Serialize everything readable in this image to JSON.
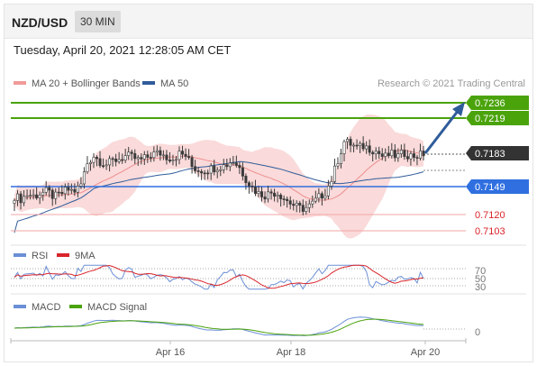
{
  "header": {
    "pair": "NZD/USD",
    "timeframe": "30 MIN",
    "datetime": "Tuesday, April 20, 2021 12:28:05 AM CET"
  },
  "legend": {
    "ma20_bb": "MA 20 + Bollinger Bands",
    "ma50": "MA 50",
    "credit": "Research © 2021 Trading Central",
    "rsi": "RSI",
    "rsi_ma": "9MA",
    "macd": "MACD",
    "macd_signal": "MACD Signal"
  },
  "colors": {
    "green_level": "#4aa30b",
    "blue_level": "#2f6fe0",
    "red_level": "#e36a6a",
    "candle": "#3a3a3a",
    "bollinger": "#f9d4d4",
    "ma20": "#ef8f8f",
    "ma50": "#2f5c9a",
    "rsi": "#6b8fd6",
    "rsi_ma": "#d9242a",
    "macd": "#6b8fd6",
    "macd_signal": "#4aa30b",
    "arrow": "#2f5c9a"
  },
  "chart_data": {
    "type": "candlestick",
    "x_labels": [
      "Apr 16",
      "Apr 18",
      "Apr 20"
    ],
    "price_levels": [
      {
        "value": "0.7236",
        "kind": "resistance"
      },
      {
        "value": "0.7219",
        "kind": "resistance"
      },
      {
        "value": "0.7183",
        "kind": "current"
      },
      {
        "value": "0.7149",
        "kind": "pivot"
      },
      {
        "value": "0.7120",
        "kind": "support"
      },
      {
        "value": "0.7103",
        "kind": "support"
      }
    ],
    "close_path": [
      0.7139,
      0.7136,
      0.7141,
      0.7139,
      0.7142,
      0.7144,
      0.7138,
      0.7141,
      0.7146,
      0.7144,
      0.7149,
      0.7173,
      0.7181,
      0.7175,
      0.7172,
      0.7176,
      0.7178,
      0.7181,
      0.7179,
      0.7176,
      0.7179,
      0.7183,
      0.7184,
      0.718,
      0.7178,
      0.7183,
      0.7181,
      0.7169,
      0.7166,
      0.7166,
      0.7168,
      0.717,
      0.7171,
      0.7176,
      0.717,
      0.7158,
      0.7148,
      0.7142,
      0.714,
      0.7143,
      0.7142,
      0.7136,
      0.7131,
      0.7127,
      0.7126,
      0.713,
      0.7137,
      0.7142,
      0.7155,
      0.7176,
      0.7196,
      0.7193,
      0.7189,
      0.7191,
      0.7188,
      0.7185,
      0.7179,
      0.7183,
      0.718,
      0.7184,
      0.7181,
      0.7181,
      0.7183
    ],
    "rsi": {
      "levels": [
        "70",
        "50",
        "30"
      ]
    },
    "macd": {
      "levels": [
        "0"
      ]
    }
  }
}
